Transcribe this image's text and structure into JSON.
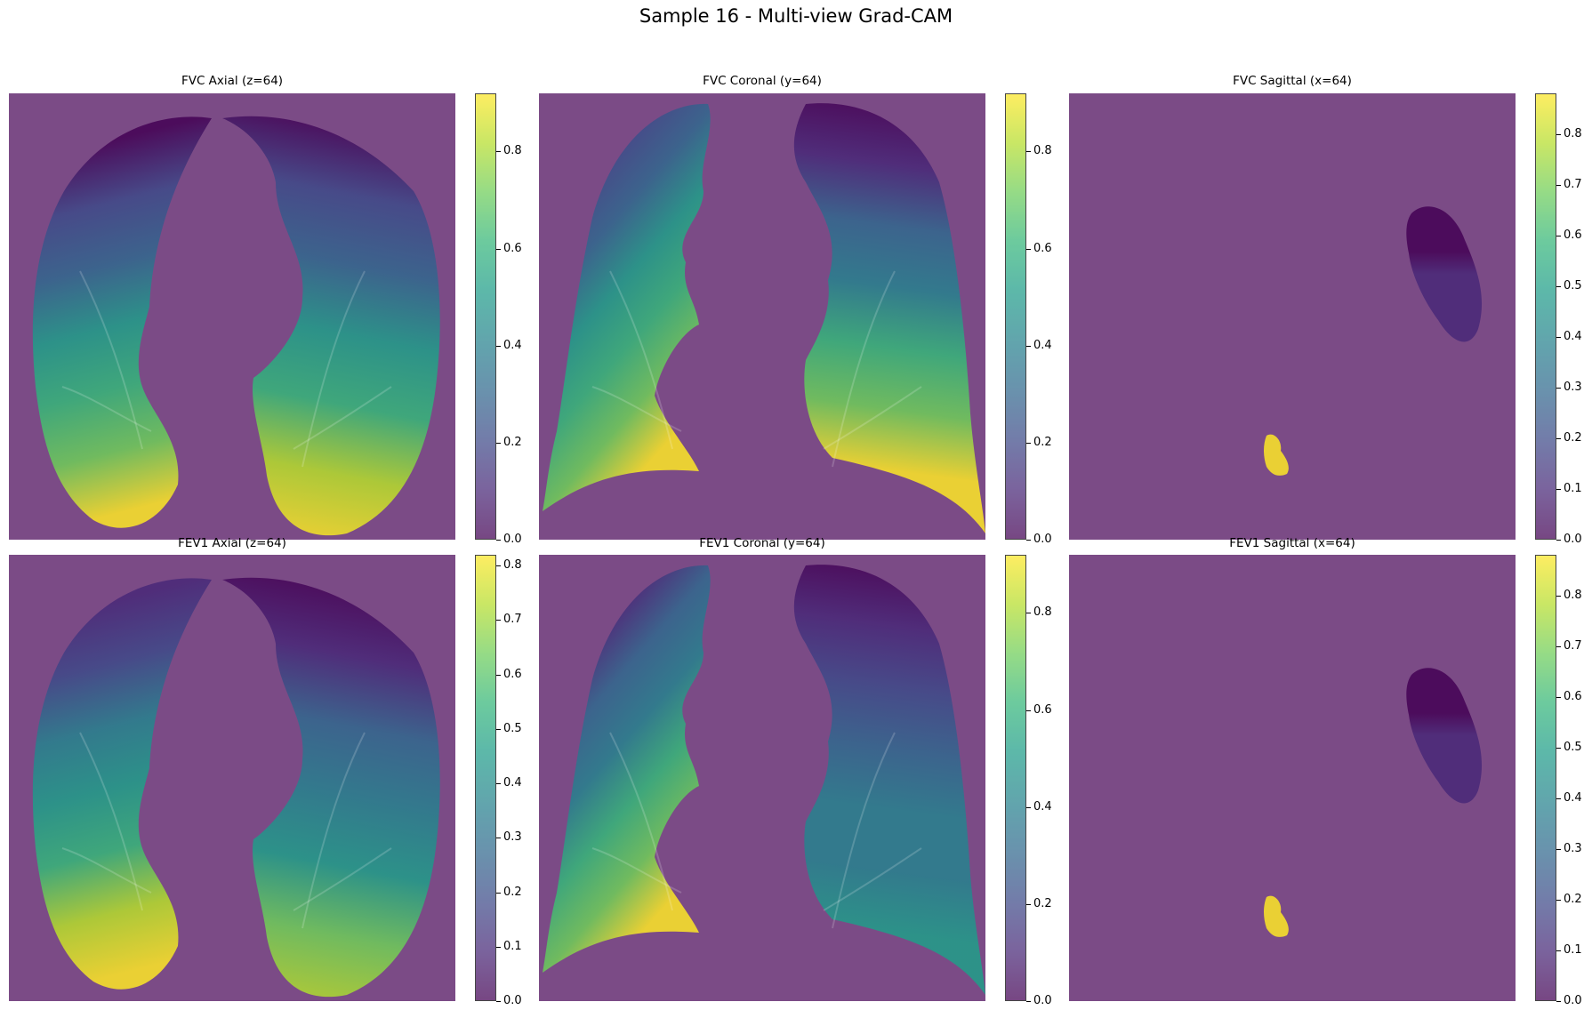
{
  "figure": {
    "title": "Sample 16 - Multi-view Grad-CAM"
  },
  "colormap": {
    "name": "viridis",
    "background_color": "#7b4b86",
    "stops": [
      "#440154",
      "#482878",
      "#3e4a89",
      "#31688e",
      "#26828e",
      "#1f9e89",
      "#35b779",
      "#6ece58",
      "#b5de2b",
      "#fde725"
    ]
  },
  "chart_data": [
    {
      "type": "heatmap",
      "title": "FVC Axial (z=64)",
      "view": "axial",
      "slice_index": 64,
      "colorbar": {
        "range": [
          0.0,
          0.92
        ],
        "ticks": [
          "0.0",
          "0.2",
          "0.4",
          "0.6",
          "0.8"
        ],
        "tick_values": [
          0.0,
          0.2,
          0.4,
          0.6,
          0.8
        ]
      },
      "regions": [
        {
          "name": "right-lung",
          "low": 0.05,
          "high": 0.9
        },
        {
          "name": "left-lung",
          "low": 0.0,
          "high": 0.92
        }
      ]
    },
    {
      "type": "heatmap",
      "title": "FVC Coronal (y=64)",
      "view": "coronal",
      "slice_index": 64,
      "colorbar": {
        "range": [
          0.0,
          0.92
        ],
        "ticks": [
          "0.0",
          "0.2",
          "0.4",
          "0.6",
          "0.8"
        ],
        "tick_values": [
          0.0,
          0.2,
          0.4,
          0.6,
          0.8
        ]
      },
      "regions": [
        {
          "name": "right-lung",
          "low": 0.02,
          "high": 0.9
        },
        {
          "name": "left-lung",
          "low": 0.0,
          "high": 0.88
        }
      ]
    },
    {
      "type": "heatmap",
      "title": "FVC Sagittal (x=64)",
      "view": "sagittal",
      "slice_index": 64,
      "colorbar": {
        "range": [
          0.0,
          0.88
        ],
        "ticks": [
          "0.0",
          "0.1",
          "0.2",
          "0.3",
          "0.4",
          "0.5",
          "0.6",
          "0.7",
          "0.8"
        ],
        "tick_values": [
          0.0,
          0.1,
          0.2,
          0.3,
          0.4,
          0.5,
          0.6,
          0.7,
          0.8
        ]
      },
      "regions": [
        {
          "name": "upper-lobe",
          "low": 0.0,
          "high": 0.1
        },
        {
          "name": "hotspot",
          "low": 0.88,
          "high": 0.88
        }
      ]
    },
    {
      "type": "heatmap",
      "title": "FEV1 Axial (z=64)",
      "view": "axial",
      "slice_index": 64,
      "colorbar": {
        "range": [
          0.0,
          0.82
        ],
        "ticks": [
          "0.0",
          "0.1",
          "0.2",
          "0.3",
          "0.4",
          "0.5",
          "0.6",
          "0.7",
          "0.8"
        ],
        "tick_values": [
          0.0,
          0.1,
          0.2,
          0.3,
          0.4,
          0.5,
          0.6,
          0.7,
          0.8
        ]
      },
      "regions": [
        {
          "name": "right-lung",
          "low": 0.1,
          "high": 0.8
        },
        {
          "name": "left-lung",
          "low": 0.0,
          "high": 0.75
        }
      ]
    },
    {
      "type": "heatmap",
      "title": "FEV1 Coronal (y=64)",
      "view": "coronal",
      "slice_index": 64,
      "colorbar": {
        "range": [
          0.0,
          0.92
        ],
        "ticks": [
          "0.0",
          "0.2",
          "0.4",
          "0.6",
          "0.8"
        ],
        "tick_values": [
          0.0,
          0.2,
          0.4,
          0.6,
          0.8
        ]
      },
      "regions": [
        {
          "name": "right-lung",
          "low": 0.0,
          "high": 0.9
        },
        {
          "name": "left-lung",
          "low": 0.0,
          "high": 0.55
        }
      ]
    },
    {
      "type": "heatmap",
      "title": "FEV1 Sagittal (x=64)",
      "view": "sagittal",
      "slice_index": 64,
      "colorbar": {
        "range": [
          0.0,
          0.88
        ],
        "ticks": [
          "0.0",
          "0.1",
          "0.2",
          "0.3",
          "0.4",
          "0.5",
          "0.6",
          "0.7",
          "0.8"
        ],
        "tick_values": [
          0.0,
          0.1,
          0.2,
          0.3,
          0.4,
          0.5,
          0.6,
          0.7,
          0.8
        ]
      },
      "regions": [
        {
          "name": "upper-lobe",
          "low": 0.0,
          "high": 0.1
        },
        {
          "name": "hotspot",
          "low": 0.88,
          "high": 0.88
        }
      ]
    }
  ]
}
